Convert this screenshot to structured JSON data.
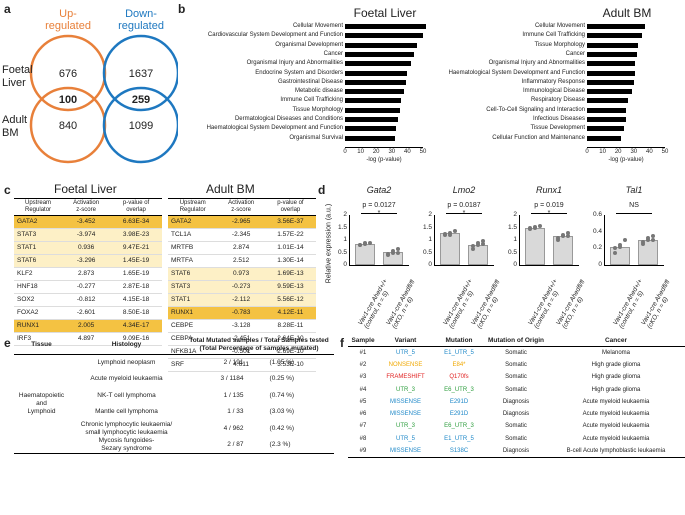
{
  "panels": {
    "a": "a",
    "b": "b",
    "c": "c",
    "d": "d",
    "e": "e",
    "f": "f"
  },
  "venn": {
    "up_title": "Up-\nregulated",
    "down_title": "Down-\nregulated",
    "row1": "Foetal\nLiver",
    "row2": "Adult\nBM",
    "up_fl": "676",
    "up_both": "100",
    "up_bm": "840",
    "down_fl": "1637",
    "down_both": "259",
    "down_bm": "1099",
    "up_color": "#e8803a",
    "down_color": "#1e78c0"
  },
  "chart_data": [
    {
      "type": "bar",
      "title": "Foetal Liver",
      "categories": [
        "Cellular Movement",
        "Cardiovascular System Development and Function",
        "Organismal Development",
        "Cancer",
        "Organismal Injury and Abnormalities",
        "Endocrine System and Disorders",
        "Gastrointestinal Disease",
        "Metabolic disease",
        "Immune Cell Trafficking",
        "Tissue Morphology",
        "Dermatological Diseases and Conditions",
        "Haematological System Development and Function",
        "Organismal Survival"
      ],
      "values": [
        52,
        50,
        46,
        44,
        42,
        40,
        39,
        38,
        36,
        35,
        34,
        33,
        32
      ],
      "xlabel": "-log (p-value)",
      "xticks": [
        "0",
        "10",
        "20",
        "30",
        "40",
        "50"
      ],
      "xlim": [
        0,
        50
      ]
    },
    {
      "type": "bar",
      "title": "Adult BM",
      "categories": [
        "Cellular Movement",
        "Immune Cell Trafficking",
        "Tissue Morphology",
        "Cancer",
        "Organismal Injury and Abnormalities",
        "Haematological System Development and Function",
        "Inflammatory Response",
        "Immunological Disease",
        "Respiratory Disease",
        "Cell-To-Cell Signaling and Interaction",
        "Infectious Diseases",
        "Tissue Development",
        "Cellular Function and Maintenance"
      ],
      "values": [
        37,
        35,
        33,
        32,
        31,
        31,
        30,
        29,
        26,
        25,
        25,
        24,
        22
      ],
      "xlabel": "-log (p-value)",
      "xticks": [
        "0",
        "10",
        "20",
        "30",
        "40",
        "50"
      ],
      "xlim": [
        0,
        50
      ]
    },
    {
      "type": "bar",
      "title": "Gata2",
      "p": "p = 0.0127",
      "categories": [
        "Vav1-cre Ahed+/+ (control, n = 5)",
        "Vav1-cre Ahedfl/fl (cKO, n = 6)"
      ],
      "values": [
        0.85,
        0.52
      ],
      "ylabel": "Relative expression (a.u.)",
      "ylim": [
        0,
        2
      ]
    },
    {
      "type": "bar",
      "title": "Lmo2",
      "p": "p = 0.0187",
      "categories": [
        "Vav1-cre Ahed+/+ (control, n = 5)",
        "Vav1-cre Ahedfl/fl (cKO, n = 6)"
      ],
      "values": [
        1.27,
        0.82
      ],
      "ylim": [
        0,
        2
      ]
    },
    {
      "type": "bar",
      "title": "Runx1",
      "p": "p = 0.019",
      "categories": [
        "Vav1-cre Ahed+/+ (control, n = 5)",
        "Vav1-cre Ahedfl/fl (cKO, n = 6)"
      ],
      "values": [
        1.5,
        1.15
      ],
      "ylim": [
        0,
        2
      ]
    },
    {
      "type": "bar",
      "title": "Tal1",
      "p": "NS",
      "categories": [
        "Vav1-cre Ahed+/+ (control, n = 5)",
        "Vav1-cre Ahedfl/fl (cKO, n = 6)"
      ],
      "values": [
        0.22,
        0.3
      ],
      "ylim": [
        0,
        0.6
      ]
    }
  ],
  "d_labels": {
    "ylabel": "Relative expression (a.u.)",
    "star": "*",
    "ctrl_line1": "Vav1-cre Ahed+/+",
    "ctrl_line2": "(control, n = 5)",
    "cko_line1": "Vav1-cre Ahedfl/fl",
    "cko_line2": "(cKO, n = 6)",
    "yticks_1": [
      "0",
      "0.5",
      "1",
      "1.5",
      "2"
    ],
    "yticks_2": [
      "0",
      "0.2",
      "0.4",
      "0.6"
    ]
  },
  "table_c": {
    "fl_title": "Foetal Liver",
    "bm_title": "Adult BM",
    "headers": [
      "Upstream\nRegulator",
      "Activation\nz-score",
      "p-value of\noverlap"
    ],
    "fl_rows": [
      {
        "reg": "GATA2",
        "z": "-3.452",
        "p": "6.63E-34",
        "hl": "dark"
      },
      {
        "reg": "STAT3",
        "z": "-3.974",
        "p": "3.98E-23",
        "hl": "light"
      },
      {
        "reg": "STAT1",
        "z": "0.936",
        "p": "9.47E-21",
        "hl": "light"
      },
      {
        "reg": "STAT6",
        "z": "-3.296",
        "p": "1.45E-19",
        "hl": "light"
      },
      {
        "reg": "KLF2",
        "z": "2.873",
        "p": "1.65E-19",
        "hl": ""
      },
      {
        "reg": "HNF18",
        "z": "-0.277",
        "p": "2.87E-18",
        "hl": ""
      },
      {
        "reg": "SOX2",
        "z": "-0.812",
        "p": "4.15E-18",
        "hl": ""
      },
      {
        "reg": "FOXA2",
        "z": "-2.601",
        "p": "8.50E-18",
        "hl": ""
      },
      {
        "reg": "RUNX1",
        "z": "2.005",
        "p": "4.34E-17",
        "hl": "dark"
      },
      {
        "reg": "IRF3",
        "z": "4.897",
        "p": "9.09E-16",
        "hl": ""
      }
    ],
    "bm_rows": [
      {
        "reg": "GATA2",
        "z": "-2.965",
        "p": "3.56E-37",
        "hl": "dark"
      },
      {
        "reg": "TCL1A",
        "z": "-2.345",
        "p": "1.57E-22",
        "hl": ""
      },
      {
        "reg": "MRTFB",
        "z": "2.874",
        "p": "1.01E-14",
        "hl": ""
      },
      {
        "reg": "MRTFA",
        "z": "2.512",
        "p": "1.30E-14",
        "hl": ""
      },
      {
        "reg": "STAT6",
        "z": "0.973",
        "p": "1.69E-13",
        "hl": "light"
      },
      {
        "reg": "STAT3",
        "z": "-0.273",
        "p": "9.59E-13",
        "hl": "light"
      },
      {
        "reg": "STAT1",
        "z": "-2.112",
        "p": "5.56E-12",
        "hl": "light"
      },
      {
        "reg": "RUNX1",
        "z": "-0.783",
        "p": "4.12E-11",
        "hl": "dark"
      },
      {
        "reg": "CEBPE",
        "z": "-3.128",
        "p": "8.28E-11",
        "hl": ""
      },
      {
        "reg": "CEBPA",
        "z": "-2.451",
        "p": "2.64E-10",
        "hl": ""
      },
      {
        "reg": "NFKB1A",
        "z": "-0.501",
        "p": "2.69E-10",
        "hl": ""
      },
      {
        "reg": "SRF",
        "z": "4.611",
        "p": "3.53E-10",
        "hl": ""
      }
    ]
  },
  "table_e": {
    "headers": [
      "Tissue",
      "Histology",
      "Total Mutated samples / Total Samples tested\n(Total Percentage of samples mutated)"
    ],
    "tissue": "Haematopoietic\nand\nLymphoid",
    "rows": [
      {
        "h": "Lymphoid neoplasm",
        "n": "2 / 191",
        "pct": "(1.05 %)"
      },
      {
        "h": "Acute myeloid leukaemia",
        "n": "3 / 1184",
        "pct": "(0.25 %)"
      },
      {
        "h": "NK-T cell lymphoma",
        "n": "1 / 135",
        "pct": "(0.74 %)"
      },
      {
        "h": "Mantle cell lymphoma",
        "n": "1 / 33",
        "pct": "(3.03 %)"
      },
      {
        "h": "Chronic lymphocytic leukaemia/\nsmall lymphocytic leukaemia",
        "n": "4 / 962",
        "pct": "(0.42 %)"
      },
      {
        "h": "Mycosis fungoides-\nSezary syndrome",
        "n": "2 / 87",
        "pct": "(2.3 %)"
      }
    ]
  },
  "table_f": {
    "headers": [
      "Sample",
      "Variant",
      "Mutation",
      "Mutation of Origin",
      "Cancer"
    ],
    "rows": [
      {
        "s": "#1",
        "v": "UTR_5",
        "vc": "blue",
        "m": "E1_UTR_5",
        "mc": "blue",
        "o": "Somatic",
        "c": "Melanoma"
      },
      {
        "s": "#2",
        "v": "NONSENSE",
        "vc": "orange",
        "m": "E84*",
        "mc": "orange",
        "o": "Somatic",
        "c": "High grade glioma"
      },
      {
        "s": "#3",
        "v": "FRAMESHIFT",
        "vc": "red",
        "m": "Q170fs",
        "mc": "red",
        "o": "Somatic",
        "c": "High grade glioma"
      },
      {
        "s": "#4",
        "v": "UTR_3",
        "vc": "green",
        "m": "E6_UTR_3",
        "mc": "green",
        "o": "Somatic",
        "c": "High grade glioma"
      },
      {
        "s": "#5",
        "v": "MISSENSE",
        "vc": "blue",
        "m": "E291D",
        "mc": "blue",
        "o": "Diagnosis",
        "c": "Acute myeloid leukaemia"
      },
      {
        "s": "#6",
        "v": "MISSENSE",
        "vc": "blue",
        "m": "E291D",
        "mc": "blue",
        "o": "Diagnosis",
        "c": "Acute myeloid leukaemia"
      },
      {
        "s": "#7",
        "v": "UTR_3",
        "vc": "green",
        "m": "E6_UTR_3",
        "mc": "green",
        "o": "Somatic",
        "c": "Acute myeloid leukaemia"
      },
      {
        "s": "#8",
        "v": "UTR_5",
        "vc": "blue",
        "m": "E1_UTR_5",
        "mc": "blue",
        "o": "Somatic",
        "c": "Acute myeloid leukaemia"
      },
      {
        "s": "#9",
        "v": "MISSENSE",
        "vc": "blue",
        "m": "S138C",
        "mc": "blue",
        "o": "Diagnosis",
        "c": "B-cell Acute lymphoblastic leukaemia"
      }
    ]
  }
}
